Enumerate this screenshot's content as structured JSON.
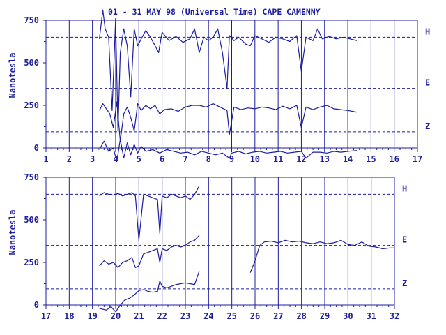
{
  "chart_data": [
    {
      "type": "line",
      "title": "01 - 31 MAY 98 (Universal Time) CAPE CAMENNY",
      "xlabel": "",
      "ylabel": "Nanotesla",
      "xlim": [
        1,
        17
      ],
      "ylim": [
        0,
        750
      ],
      "grid": true,
      "x_ticks": [
        "1",
        "2",
        "3",
        "4",
        "5",
        "6",
        "7",
        "8",
        "9",
        "10",
        "11",
        "12",
        "13",
        "14",
        "15",
        "16",
        "17"
      ],
      "y_ticks": [
        "750",
        "500",
        "250",
        "0"
      ],
      "baselines": [
        {
          "name": "H",
          "value": 650
        },
        {
          "name": "E",
          "value": 350
        },
        {
          "name": "Z",
          "value": 95
        }
      ],
      "series": [
        {
          "name": "H",
          "x": [
            3.3,
            3.45,
            3.55,
            3.7,
            3.85,
            4.0,
            4.1,
            4.2,
            4.35,
            4.5,
            4.65,
            4.8,
            4.95,
            5.1,
            5.3,
            5.5,
            5.7,
            5.85,
            6.0,
            6.3,
            6.6,
            6.9,
            7.2,
            7.4,
            7.6,
            7.8,
            8.0,
            8.2,
            8.4,
            8.6,
            8.8,
            8.9,
            9.1,
            9.3,
            9.6,
            9.8,
            10.0,
            10.3,
            10.6,
            10.9,
            11.2,
            11.5,
            11.8,
            12.0,
            12.2,
            12.5,
            12.7,
            12.9,
            13.2,
            13.5,
            13.8,
            14.1,
            14.4
          ],
          "values": [
            640,
            810,
            700,
            650,
            220,
            760,
            100,
            560,
            700,
            600,
            300,
            700,
            600,
            640,
            690,
            650,
            600,
            560,
            680,
            630,
            655,
            620,
            640,
            700,
            560,
            650,
            630,
            650,
            700,
            560,
            350,
            660,
            630,
            650,
            610,
            600,
            660,
            640,
            620,
            650,
            640,
            625,
            660,
            450,
            650,
            630,
            700,
            640,
            655,
            640,
            650,
            640,
            630
          ]
        },
        {
          "name": "E",
          "x": [
            3.3,
            3.45,
            3.6,
            3.75,
            3.9,
            4.05,
            4.2,
            4.35,
            4.5,
            4.65,
            4.8,
            4.95,
            5.1,
            5.3,
            5.5,
            5.7,
            5.9,
            6.1,
            6.4,
            6.7,
            7.0,
            7.3,
            7.6,
            7.9,
            8.2,
            8.5,
            8.8,
            8.9,
            9.1,
            9.4,
            9.7,
            10.0,
            10.3,
            10.6,
            10.9,
            11.2,
            11.5,
            11.8,
            12.0,
            12.2,
            12.5,
            12.8,
            13.1,
            13.4,
            13.7,
            14.0,
            14.4
          ],
          "values": [
            220,
            260,
            230,
            200,
            120,
            270,
            40,
            200,
            240,
            180,
            100,
            260,
            220,
            250,
            230,
            250,
            200,
            225,
            230,
            215,
            240,
            250,
            250,
            240,
            260,
            240,
            220,
            80,
            240,
            225,
            235,
            230,
            240,
            235,
            225,
            245,
            230,
            250,
            120,
            240,
            225,
            240,
            250,
            230,
            225,
            220,
            210
          ]
        },
        {
          "name": "Z",
          "x": [
            3.3,
            3.5,
            3.7,
            3.9,
            4.05,
            4.2,
            4.35,
            4.5,
            4.65,
            4.8,
            4.95,
            5.1,
            5.3,
            5.6,
            5.9,
            6.2,
            6.5,
            6.8,
            7.1,
            7.4,
            7.7,
            8.0,
            8.3,
            8.6,
            8.8,
            8.9,
            9.0,
            9.3,
            9.6,
            9.9,
            10.2,
            10.5,
            10.8,
            11.1,
            11.4,
            11.7,
            12.0,
            12.2,
            12.5,
            12.8,
            13.1,
            13.4,
            13.7,
            14.0,
            14.4
          ],
          "values": [
            -10,
            40,
            -20,
            0,
            -80,
            50,
            -60,
            30,
            -40,
            20,
            -30,
            10,
            -20,
            -10,
            -30,
            -10,
            -20,
            -30,
            -25,
            -40,
            -20,
            -30,
            -40,
            -30,
            -50,
            -60,
            -30,
            -20,
            -35,
            -25,
            -20,
            -30,
            -25,
            -20,
            -30,
            -25,
            -20,
            -60,
            -25,
            -25,
            -30,
            -20,
            -25,
            -20,
            -15
          ]
        }
      ]
    },
    {
      "type": "line",
      "title": "",
      "xlabel": "",
      "ylabel": "Nanotesla",
      "xlim": [
        17,
        32
      ],
      "ylim": [
        0,
        750
      ],
      "grid": true,
      "x_ticks": [
        "17",
        "18",
        "19",
        "20",
        "21",
        "22",
        "23",
        "24",
        "25",
        "26",
        "27",
        "28",
        "29",
        "30",
        "31",
        "32"
      ],
      "y_ticks": [
        "750",
        "500",
        "250",
        "0"
      ],
      "baselines": [
        {
          "name": "H",
          "value": 650
        },
        {
          "name": "E",
          "value": 350
        },
        {
          "name": "Z",
          "value": 95
        }
      ],
      "series": [
        {
          "name": "H",
          "x": [
            19.3,
            19.5,
            19.7,
            19.9,
            20.1,
            20.3,
            20.5,
            20.7,
            20.85,
            21.0,
            21.2,
            21.4,
            21.6,
            21.8,
            21.9,
            22.0,
            22.2,
            22.4,
            22.6,
            22.8,
            23.0,
            23.2,
            23.4,
            23.6
          ],
          "values": [
            640,
            660,
            650,
            645,
            655,
            640,
            650,
            660,
            640,
            380,
            650,
            640,
            630,
            620,
            420,
            640,
            630,
            650,
            640,
            630,
            640,
            620,
            650,
            700
          ]
        },
        {
          "name": "E",
          "x": [
            19.3,
            19.5,
            19.7,
            19.9,
            20.1,
            20.3,
            20.5,
            20.7,
            20.85,
            21.0,
            21.2,
            21.4,
            21.6,
            21.8,
            21.9,
            22.0,
            22.2,
            22.4,
            22.6,
            22.8,
            23.0,
            23.2,
            23.4,
            23.6,
            25.8,
            26.0,
            26.2,
            26.4,
            26.7,
            27.0,
            27.3,
            27.6,
            27.9,
            28.2,
            28.5,
            28.8,
            29.1,
            29.4,
            29.7,
            30.0,
            30.3,
            30.6,
            30.9,
            31.2,
            31.5,
            31.8,
            32.0
          ],
          "values": [
            230,
            260,
            240,
            250,
            220,
            250,
            260,
            280,
            220,
            230,
            300,
            310,
            320,
            330,
            250,
            330,
            320,
            340,
            350,
            340,
            350,
            370,
            380,
            410,
            190,
            260,
            350,
            370,
            375,
            365,
            380,
            370,
            375,
            365,
            360,
            370,
            360,
            365,
            380,
            355,
            350,
            370,
            345,
            340,
            330,
            335,
            335
          ]
        },
        {
          "name": "Z",
          "x": [
            19.3,
            19.6,
            19.8,
            20.0,
            20.2,
            20.4,
            20.6,
            20.8,
            21.0,
            21.2,
            21.4,
            21.6,
            21.8,
            21.9,
            22.0,
            22.2,
            22.4,
            22.6,
            22.8,
            23.0,
            23.2,
            23.4,
            23.6
          ],
          "values": [
            -20,
            -30,
            -10,
            -40,
            0,
            30,
            40,
            60,
            85,
            90,
            80,
            75,
            80,
            140,
            110,
            100,
            110,
            120,
            125,
            130,
            125,
            120,
            200
          ]
        }
      ]
    }
  ]
}
